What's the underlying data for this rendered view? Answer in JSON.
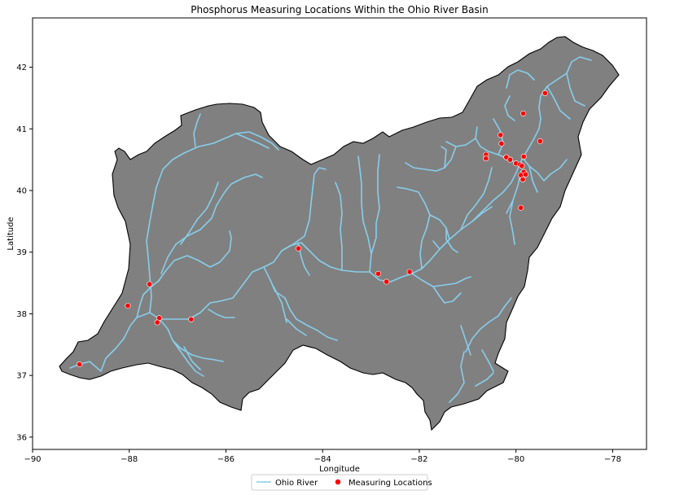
{
  "chart_data": {
    "type": "scatter",
    "title": "Phosphorus Measuring Locations Within the Ohio River Basin",
    "xlabel": "Longitude",
    "ylabel": "Latitude",
    "xlim": [
      -90,
      -77.3
    ],
    "ylim": [
      35.8,
      42.8
    ],
    "xticks": [
      -90,
      -88,
      -86,
      -84,
      -82,
      -80,
      -78
    ],
    "yticks": [
      36,
      37,
      38,
      39,
      40,
      41,
      42
    ],
    "xtick_labels": [
      "−90",
      "−88",
      "−86",
      "−84",
      "−82",
      "−80",
      "−78"
    ],
    "ytick_labels": [
      "36",
      "37",
      "38",
      "39",
      "40",
      "41",
      "42"
    ],
    "grid": false,
    "legend_position": "bottom-center",
    "colors": {
      "basin_fill": "#808080",
      "basin_edge": "#000000",
      "river": "#87ceeb",
      "points": "#ff0000"
    },
    "series": [
      {
        "name": "Ohio River",
        "kind": "line"
      },
      {
        "name": "Measuring Locations",
        "kind": "scatter",
        "points": [
          [
            -89.03,
            37.18
          ],
          [
            -88.03,
            38.13
          ],
          [
            -87.58,
            38.48
          ],
          [
            -87.38,
            37.93
          ],
          [
            -87.42,
            37.86
          ],
          [
            -86.72,
            37.91
          ],
          [
            -84.5,
            39.06
          ],
          [
            -82.85,
            38.65
          ],
          [
            -82.68,
            38.52
          ],
          [
            -82.2,
            38.68
          ],
          [
            -80.62,
            40.58
          ],
          [
            -80.62,
            40.52
          ],
          [
            -80.32,
            40.9
          ],
          [
            -80.3,
            40.76
          ],
          [
            -80.2,
            40.54
          ],
          [
            -80.12,
            40.5
          ],
          [
            -80.0,
            40.44
          ],
          [
            -79.92,
            40.42
          ],
          [
            -79.88,
            40.4
          ],
          [
            -79.84,
            40.3
          ],
          [
            -79.9,
            40.25
          ],
          [
            -79.86,
            40.18
          ],
          [
            -79.8,
            40.26
          ],
          [
            -79.84,
            40.55
          ],
          [
            -79.9,
            39.72
          ],
          [
            -79.85,
            41.25
          ],
          [
            -79.5,
            40.8
          ],
          [
            -79.4,
            41.58
          ]
        ]
      }
    ]
  }
}
